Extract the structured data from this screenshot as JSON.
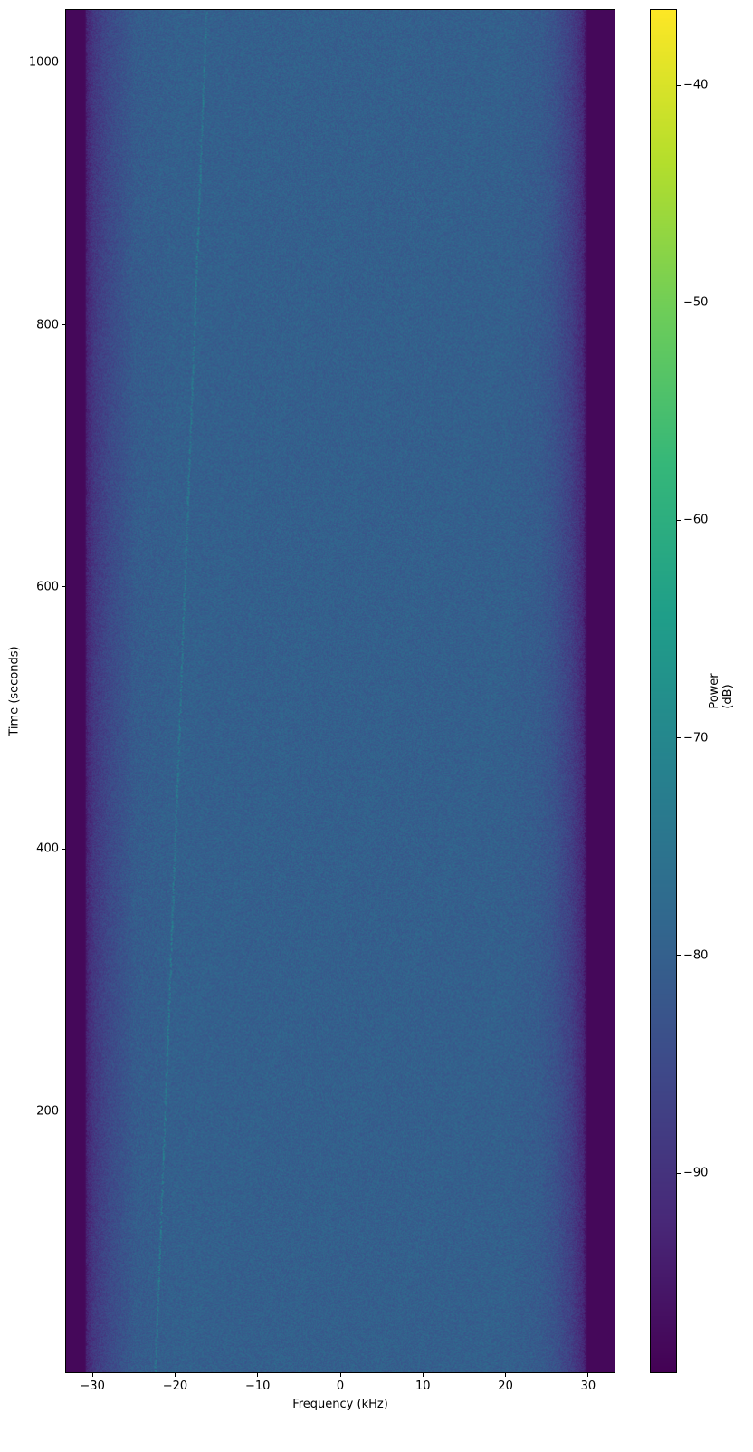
{
  "chart_data": {
    "type": "heatmap",
    "subtype": "spectrogram",
    "title": "",
    "xlabel": "Frequency (kHz)",
    "ylabel": "Time (seconds)",
    "colorbar_label": "Power (dB)",
    "colormap": "viridis",
    "xlim": [
      -33.3,
      33.3
    ],
    "ylim": [
      0,
      1041
    ],
    "clim": [
      -99.2,
      -36.5
    ],
    "xticks": [
      -30,
      -20,
      -10,
      0,
      10,
      20,
      30
    ],
    "xtick_labels": [
      "−30",
      "−20",
      "−10",
      "0",
      "10",
      "20",
      "30"
    ],
    "yticks": [
      200,
      400,
      600,
      800,
      1000
    ],
    "ytick_labels": [
      "200",
      "400",
      "600",
      "800",
      "1000"
    ],
    "cticks": [
      -90,
      -80,
      -70,
      -60,
      -50,
      -40
    ],
    "ctick_labels": [
      "−90",
      "−80",
      "−70",
      "−60",
      "−50",
      "−40"
    ],
    "power_profile": {
      "frequency_khz": [
        -33.3,
        -31,
        -30.8,
        -30,
        -28,
        -26,
        -25,
        -20,
        0,
        20,
        24,
        26,
        28,
        29.5,
        30,
        33.3
      ],
      "power_db": [
        -98,
        -98,
        -93,
        -89,
        -85,
        -82.5,
        -81,
        -80,
        -80,
        -80,
        -81,
        -83,
        -87,
        -92,
        -98,
        -98
      ]
    },
    "faint_drifting_line": {
      "time_s": [
        0,
        1041
      ],
      "frequency_khz": [
        -22.5,
        -16.3
      ],
      "power_db": -72
    },
    "grid": false,
    "legend": "none"
  }
}
